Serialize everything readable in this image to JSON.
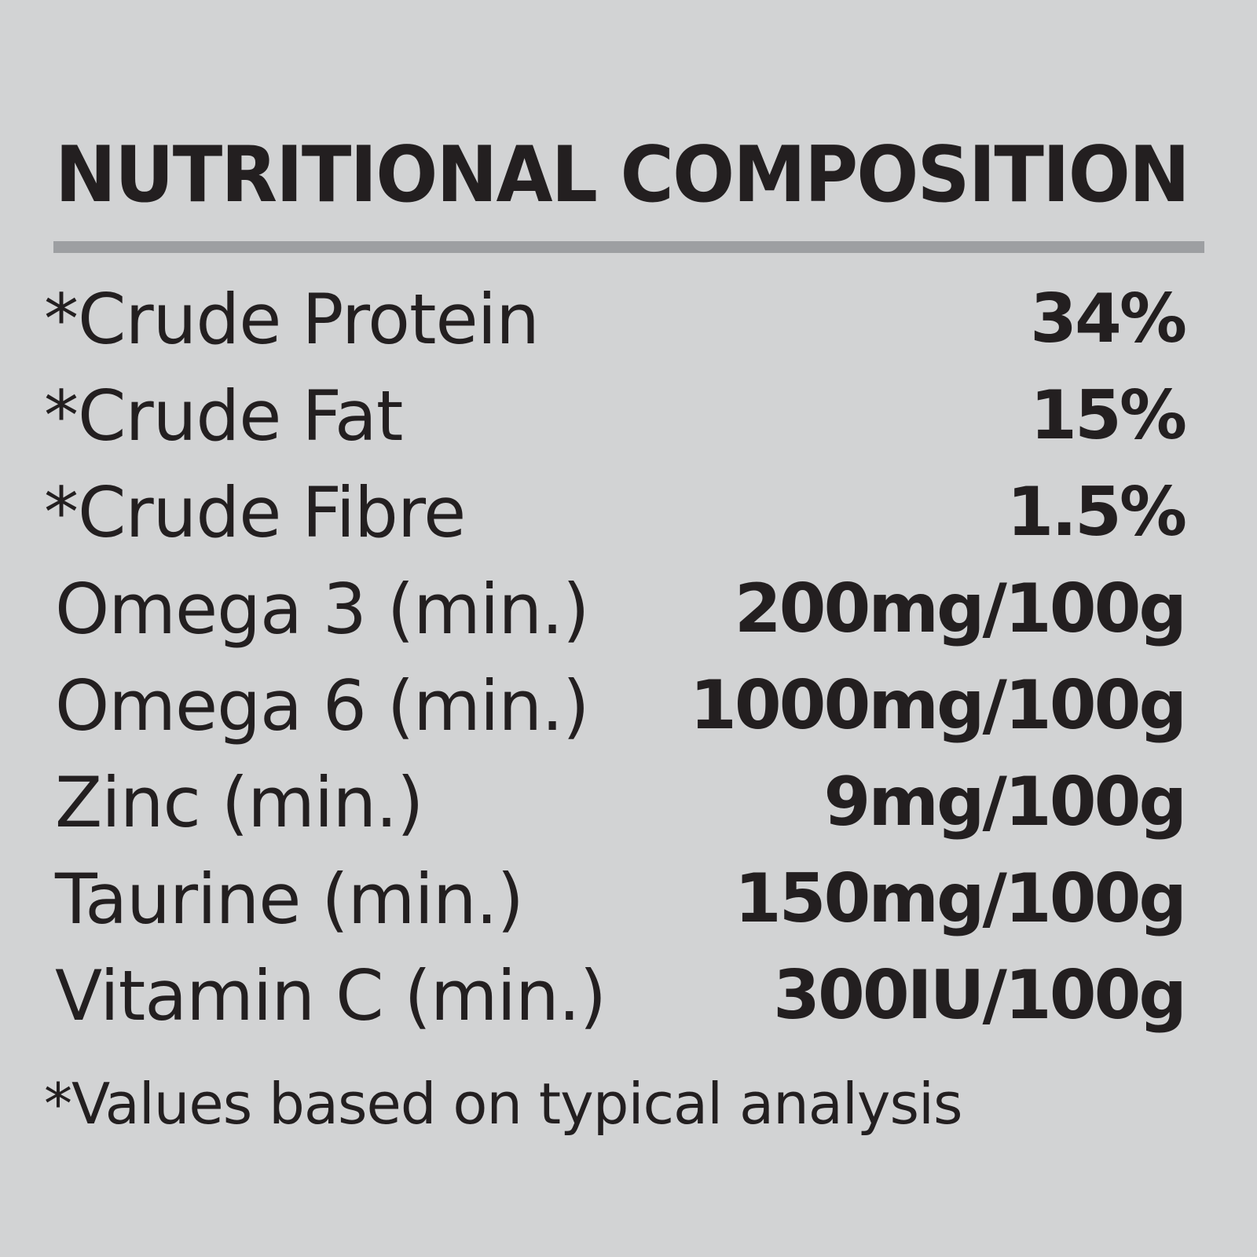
{
  "panel": {
    "title": "NUTRITIONAL COMPOSITION",
    "rows": [
      {
        "label": "*Crude Protein",
        "value": "34%"
      },
      {
        "label": "*Crude Fat",
        "value": "15%"
      },
      {
        "label": "*Crude Fibre",
        "value": "1.5%"
      },
      {
        "label": "Omega 3 (min.)",
        "value": "200mg/100g"
      },
      {
        "label": "Omega 6 (min.)",
        "value": "1000mg/100g"
      },
      {
        "label": "Zinc (min.)",
        "value": "9mg/100g"
      },
      {
        "label": "Taurine (min.)",
        "value": "150mg/100g"
      },
      {
        "label": "Vitamin C (min.)",
        "value": "300IU/100g"
      }
    ],
    "footnote": "*Values based on typical analysis"
  },
  "colors": {
    "background": "#d2d3d4",
    "text": "#231f20",
    "divider": "#9d9fa2"
  }
}
